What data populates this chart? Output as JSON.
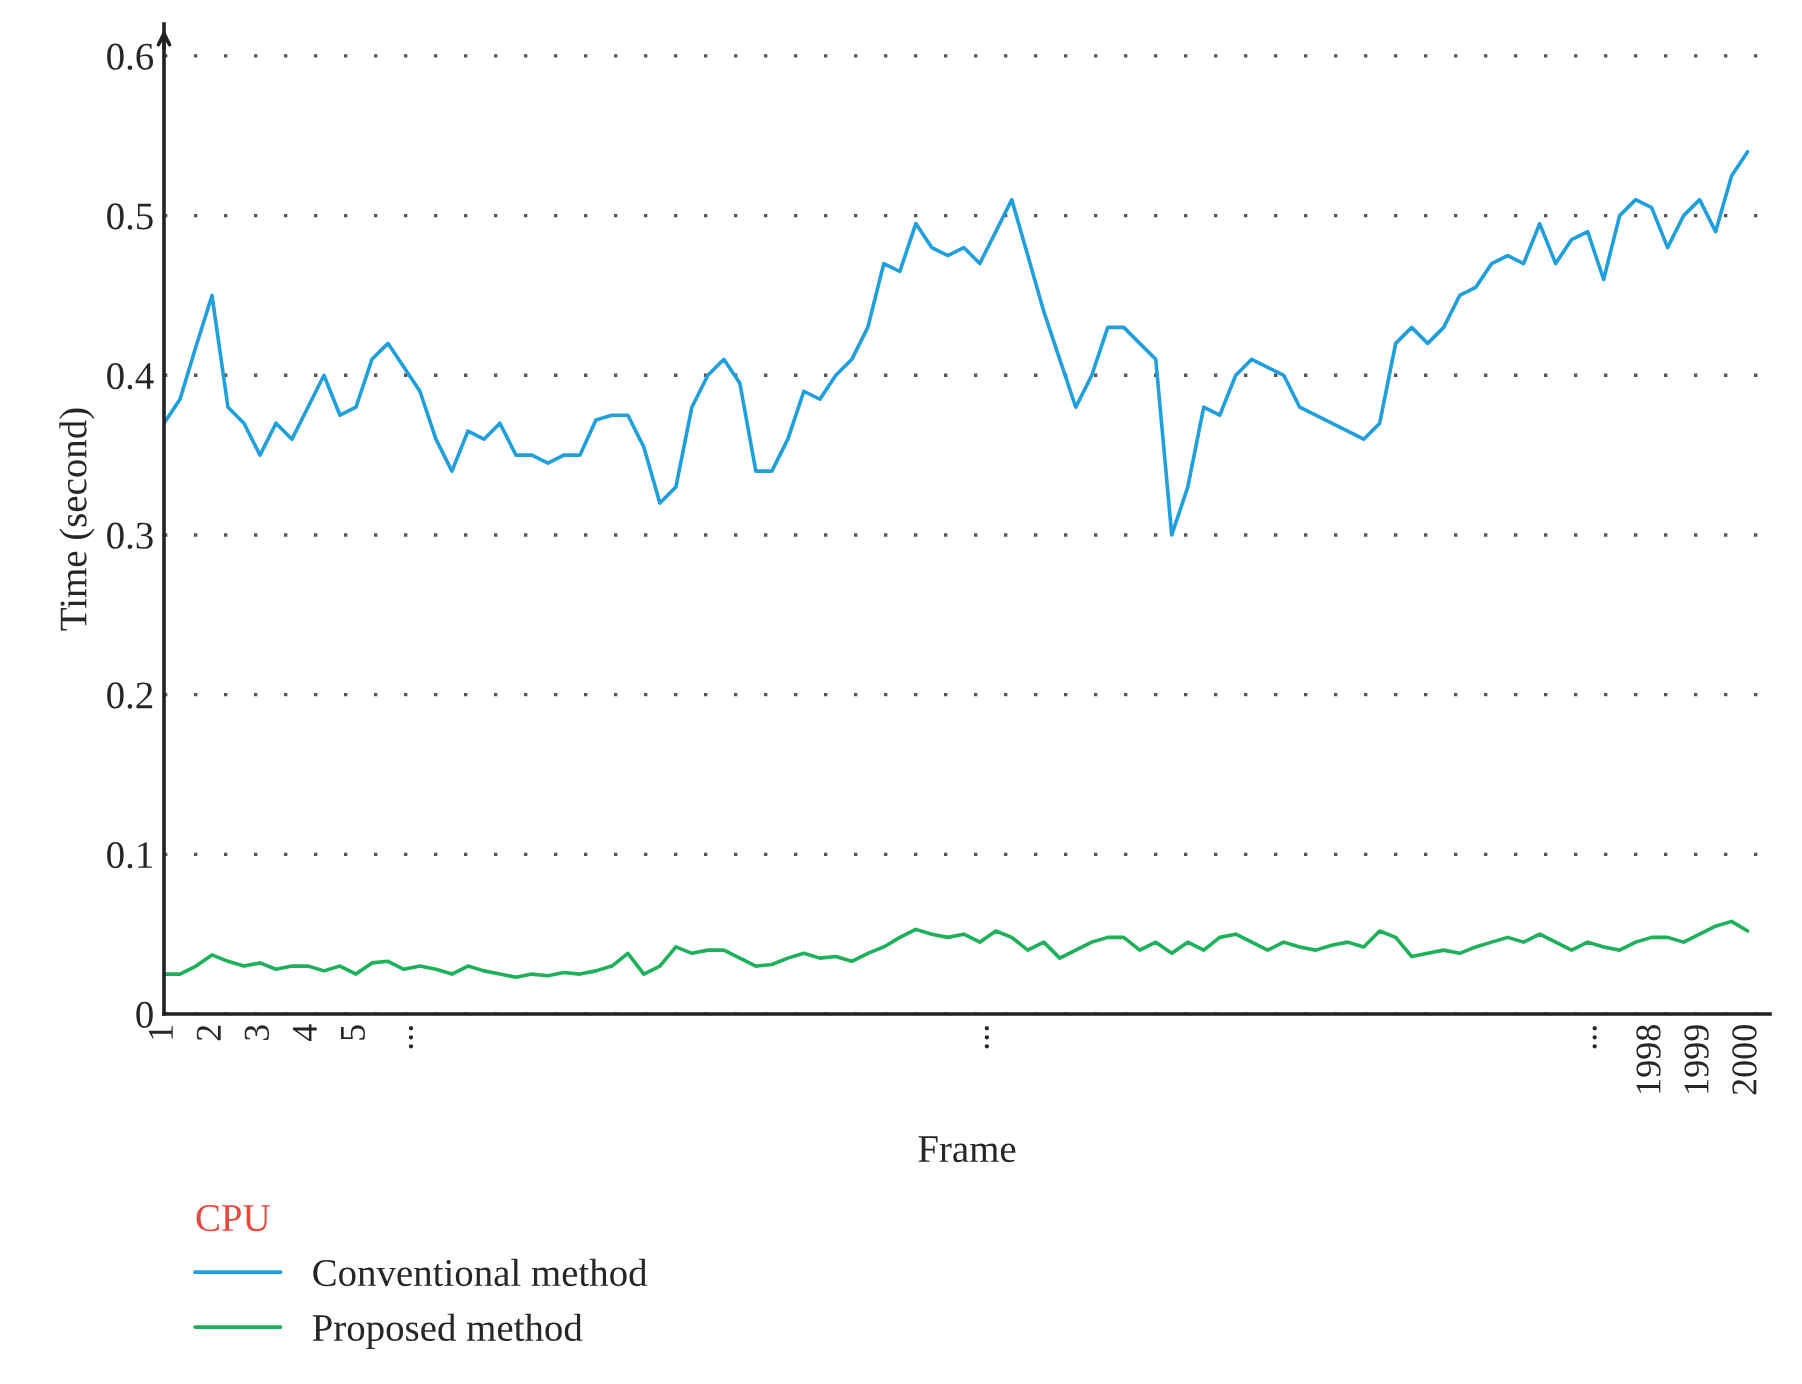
{
  "chart_data": {
    "type": "line",
    "xlabel": "Frame",
    "ylabel": "Time (second)",
    "legend_title": "CPU",
    "categories": [
      "1",
      null,
      null,
      "2",
      null,
      null,
      "3",
      null,
      null,
      "4",
      null,
      null,
      "5",
      null,
      null,
      "...",
      null,
      null,
      null,
      null,
      null,
      null,
      null,
      null,
      null,
      null,
      null,
      null,
      null,
      null,
      null,
      null,
      null,
      null,
      null,
      null,
      null,
      null,
      null,
      null,
      null,
      null,
      null,
      null,
      null,
      null,
      null,
      null,
      null,
      null,
      null,
      "...",
      null,
      null,
      null,
      null,
      null,
      null,
      null,
      null,
      null,
      null,
      null,
      null,
      null,
      null,
      null,
      null,
      null,
      null,
      null,
      null,
      null,
      null,
      null,
      null,
      null,
      null,
      null,
      null,
      null,
      null,
      null,
      null,
      null,
      null,
      null,
      null,
      null,
      "...",
      null,
      null,
      null,
      "1998",
      null,
      null,
      "1999",
      null,
      null,
      "2000"
    ],
    "series": [
      {
        "name": "Conventional method",
        "color": "#1f9fdc",
        "values": [
          0.37,
          0.385,
          0.418,
          0.45,
          0.38,
          0.37,
          0.35,
          0.37,
          0.36,
          0.38,
          0.4,
          0.375,
          0.38,
          0.41,
          0.42,
          0.405,
          0.39,
          0.36,
          0.34,
          0.365,
          0.36,
          0.37,
          0.35,
          0.35,
          0.345,
          0.35,
          0.35,
          0.372,
          0.375,
          0.375,
          0.355,
          0.32,
          0.33,
          0.38,
          0.4,
          0.41,
          0.395,
          0.34,
          0.34,
          0.36,
          0.39,
          0.385,
          0.4,
          0.41,
          0.43,
          0.47,
          0.465,
          0.495,
          0.48,
          0.475,
          0.48,
          0.47,
          0.49,
          0.51,
          0.475,
          0.44,
          0.41,
          0.38,
          0.4,
          0.43,
          0.43,
          0.42,
          0.41,
          0.3,
          0.33,
          0.38,
          0.375,
          0.4,
          0.41,
          0.405,
          0.4,
          0.38,
          0.375,
          0.37,
          0.365,
          0.36,
          0.37,
          0.42,
          0.43,
          0.42,
          0.43,
          0.45,
          0.455,
          0.47,
          0.475,
          0.47,
          0.495,
          0.47,
          0.485,
          0.49,
          0.46,
          0.5,
          0.51,
          0.505,
          0.48,
          0.5,
          0.51,
          0.49,
          0.525,
          0.54
        ]
      },
      {
        "name": "Proposed method",
        "color": "#1db15a",
        "values": [
          0.025,
          0.025,
          0.03,
          0.037,
          0.033,
          0.03,
          0.032,
          0.028,
          0.03,
          0.03,
          0.027,
          0.03,
          0.025,
          0.032,
          0.033,
          0.028,
          0.03,
          0.028,
          0.025,
          0.03,
          0.027,
          0.025,
          0.023,
          0.025,
          0.024,
          0.026,
          0.025,
          0.027,
          0.03,
          0.038,
          0.025,
          0.03,
          0.042,
          0.038,
          0.04,
          0.04,
          0.035,
          0.03,
          0.031,
          0.035,
          0.038,
          0.035,
          0.036,
          0.033,
          0.038,
          0.042,
          0.048,
          0.053,
          0.05,
          0.048,
          0.05,
          0.045,
          0.052,
          0.048,
          0.04,
          0.045,
          0.035,
          0.04,
          0.045,
          0.048,
          0.048,
          0.04,
          0.045,
          0.038,
          0.045,
          0.04,
          0.048,
          0.05,
          0.045,
          0.04,
          0.045,
          0.042,
          0.04,
          0.043,
          0.045,
          0.042,
          0.052,
          0.048,
          0.036,
          0.038,
          0.04,
          0.038,
          0.042,
          0.045,
          0.048,
          0.045,
          0.05,
          0.045,
          0.04,
          0.045,
          0.042,
          0.04,
          0.045,
          0.048,
          0.048,
          0.045,
          0.05,
          0.055,
          0.058,
          0.052
        ]
      }
    ],
    "ylim": [
      0,
      0.62
    ],
    "yticks": [
      0,
      0.1,
      0.2,
      0.3,
      0.4,
      0.5,
      0.6
    ],
    "grid": "y",
    "legend": "bottom left"
  }
}
